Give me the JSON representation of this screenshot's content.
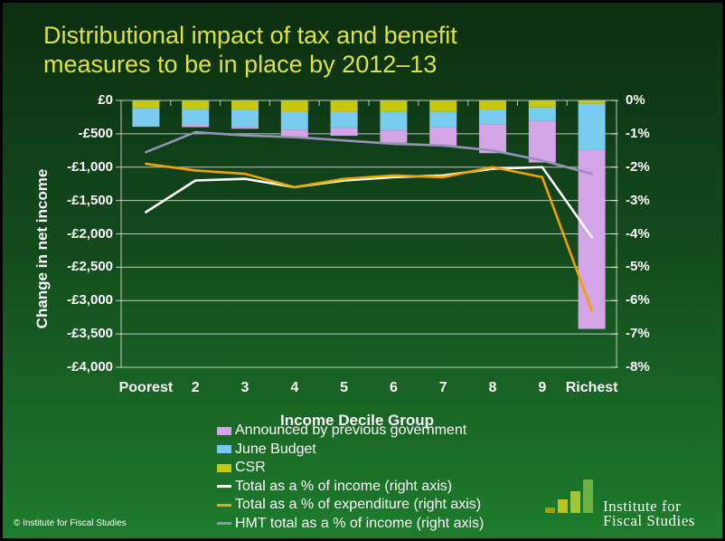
{
  "title": {
    "line1": "Distributional impact of tax and benefit",
    "line2": "measures to be in place by 2012–13"
  },
  "footer": {
    "copyright": "© Institute for Fiscal Studies"
  },
  "logo": {
    "name_line1": "Institute for",
    "name_line2": "Fiscal Studies",
    "bar_colors": [
      "#a89f00",
      "#bfc517",
      "#a3c636",
      "#6fb13f"
    ]
  },
  "colors": {
    "background_top": "#0c2e11",
    "background_bottom": "#1e7c2c",
    "title_text": "#dfe23c",
    "axis_text": "#ffffff",
    "gridline": "rgba(255,255,255,0.72)"
  },
  "chart_data": {
    "type": "bar",
    "subtype": "stacked negative bars (left £ axis) with overlaid lines (right % axis)",
    "categories": [
      "Poorest",
      "2",
      "3",
      "4",
      "5",
      "6",
      "7",
      "8",
      "9",
      "Richest"
    ],
    "bar_series": [
      {
        "name": "Announced by previous government",
        "color": "#d3a4e6",
        "axis": "left",
        "values": [
          -15,
          -40,
          -30,
          -110,
          -120,
          -185,
          -275,
          -435,
          -630,
          -2680
        ]
      },
      {
        "name": "June Budget",
        "color": "#79ccee",
        "axis": "left",
        "values": [
          -260,
          -230,
          -260,
          -270,
          -235,
          -285,
          -240,
          -220,
          -195,
          -695
        ]
      },
      {
        "name": "CSR",
        "color": "#c8c90e",
        "axis": "left",
        "values": [
          -120,
          -130,
          -135,
          -175,
          -175,
          -165,
          -165,
          -135,
          -105,
          -50
        ]
      }
    ],
    "stack_order_from_zero": [
      "CSR",
      "June Budget",
      "Announced by previous government"
    ],
    "line_series": [
      {
        "name": "Total as a % of income (right axis)",
        "color": "#ffffff",
        "axis": "right",
        "values": [
          -3.35,
          -2.4,
          -2.35,
          -2.6,
          -2.4,
          -2.3,
          -2.25,
          -2.05,
          -2.0,
          -4.1
        ]
      },
      {
        "name": "Total as a % of expenditure (right axis)",
        "color": "#f0a202",
        "axis": "right",
        "values": [
          -1.9,
          -2.1,
          -2.2,
          -2.6,
          -2.35,
          -2.25,
          -2.3,
          -2.0,
          -2.3,
          -6.3
        ]
      },
      {
        "name": "HMT total as a % of income (right axis)",
        "color": "#9494b8",
        "axis": "right",
        "values": [
          -1.55,
          -0.95,
          -1.05,
          -1.1,
          -1.2,
          -1.3,
          -1.35,
          -1.5,
          -1.8,
          -2.2
        ]
      }
    ],
    "left_axis": {
      "title": "Change in net income",
      "min": -4000,
      "max": 0,
      "tick_step": 500,
      "tick_labels": [
        "£0",
        "-£500",
        "-£1,000",
        "-£1,500",
        "-£2,000",
        "-£2,500",
        "-£3,000",
        "-£3,500",
        "-£4,000"
      ]
    },
    "right_axis": {
      "min": -8,
      "max": 0,
      "tick_step": 1,
      "tick_labels": [
        "0%",
        "-1%",
        "-2%",
        "-3%",
        "-4%",
        "-5%",
        "-6%",
        "-7%",
        "-8%"
      ]
    },
    "x_axis": {
      "title": "Income Decile Group"
    },
    "grid": true,
    "legend_position": "bottom"
  },
  "legend": {
    "items": [
      {
        "label": "Announced by previous government",
        "swatch": "bar",
        "color": "#d3a4e6"
      },
      {
        "label": "June Budget",
        "swatch": "bar",
        "color": "#79ccee"
      },
      {
        "label": "CSR",
        "swatch": "bar",
        "color": "#c8c90e"
      },
      {
        "label": "Total as a % of income (right axis)",
        "swatch": "line",
        "color": "#ffffff"
      },
      {
        "label": "Total as a % of expenditure (right axis)",
        "swatch": "line",
        "color": "#f0a202"
      },
      {
        "label": "HMT total as a % of income (right axis)",
        "swatch": "line",
        "color": "#9494b8"
      }
    ]
  }
}
